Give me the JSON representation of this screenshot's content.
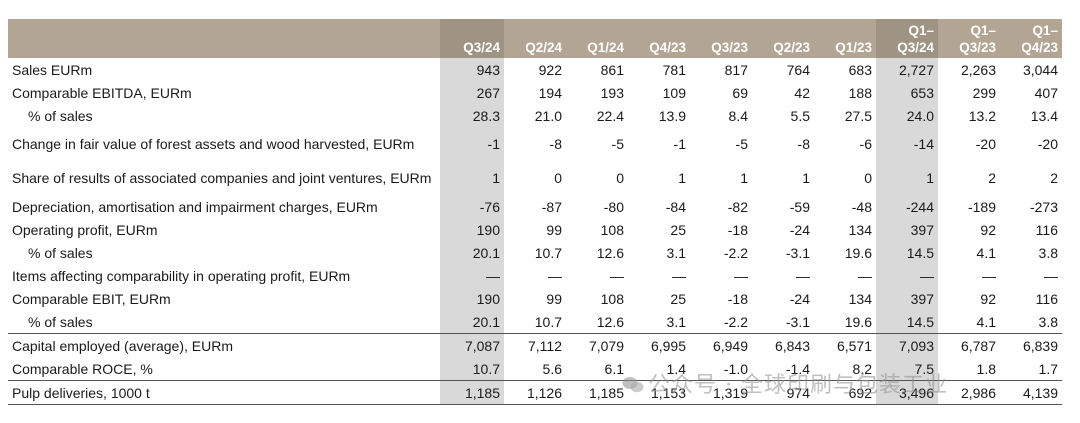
{
  "columns": [
    {
      "label": "Q3/24",
      "hl": true
    },
    {
      "label": "Q2/24",
      "hl": false
    },
    {
      "label": "Q1/24",
      "hl": false
    },
    {
      "label": "Q4/23",
      "hl": false
    },
    {
      "label": "Q3/23",
      "hl": false
    },
    {
      "label": "Q2/23",
      "hl": false
    },
    {
      "label": "Q1/23",
      "hl": false
    },
    {
      "label": "Q1–\nQ3/24",
      "hl": true
    },
    {
      "label": "Q1–\nQ3/23",
      "hl": false
    },
    {
      "label": "Q1–\nQ4/23",
      "hl": false
    }
  ],
  "rows": [
    {
      "label": "Sales EURm",
      "values": [
        "943",
        "922",
        "861",
        "781",
        "817",
        "764",
        "683",
        "2,727",
        "2,263",
        "3,044"
      ]
    },
    {
      "label": "Comparable EBITDA, EURm",
      "values": [
        "267",
        "194",
        "193",
        "109",
        "69",
        "42",
        "188",
        "653",
        "299",
        "407"
      ]
    },
    {
      "label": "% of sales",
      "indent": true,
      "values": [
        "28.3",
        "21.0",
        "22.4",
        "13.9",
        "8.4",
        "5.5",
        "27.5",
        "24.0",
        "13.2",
        "13.4"
      ]
    },
    {
      "label": "Change in fair value of forest assets and wood harvested, EURm",
      "tall": true,
      "values": [
        "-1",
        "-8",
        "-5",
        "-1",
        "-5",
        "-8",
        "-6",
        "-14",
        "-20",
        "-20"
      ]
    },
    {
      "label": "Share of results of associated companies and joint ventures, EURm",
      "tall": true,
      "values": [
        "1",
        "0",
        "0",
        "1",
        "1",
        "1",
        "0",
        "1",
        "2",
        "2"
      ]
    },
    {
      "label": "Depreciation, amortisation and impairment charges, EURm",
      "values": [
        "-76",
        "-87",
        "-80",
        "-84",
        "-82",
        "-59",
        "-48",
        "-244",
        "-189",
        "-273"
      ]
    },
    {
      "label": "Operating profit, EURm",
      "values": [
        "190",
        "99",
        "108",
        "25",
        "-18",
        "-24",
        "134",
        "397",
        "92",
        "116"
      ]
    },
    {
      "label": "% of sales",
      "indent": true,
      "values": [
        "20.1",
        "10.7",
        "12.6",
        "3.1",
        "-2.2",
        "-3.1",
        "19.6",
        "14.5",
        "4.1",
        "3.8"
      ]
    },
    {
      "label": "Items affecting comparability in operating profit, EURm",
      "values": [
        "—",
        "—",
        "—",
        "—",
        "—",
        "—",
        "—",
        "—",
        "—",
        "—"
      ]
    },
    {
      "label": "Comparable EBIT, EURm",
      "values": [
        "190",
        "99",
        "108",
        "25",
        "-18",
        "-24",
        "134",
        "397",
        "92",
        "116"
      ]
    },
    {
      "label": "% of sales",
      "indent": true,
      "values": [
        "20.1",
        "10.7",
        "12.6",
        "3.1",
        "-2.2",
        "-3.1",
        "19.6",
        "14.5",
        "4.1",
        "3.8"
      ]
    },
    {
      "label": "Capital employed (average), EURm",
      "sep": true,
      "values": [
        "7,087",
        "7,112",
        "7,079",
        "6,995",
        "6,949",
        "6,843",
        "6,571",
        "7,093",
        "6,787",
        "6,839"
      ]
    },
    {
      "label": "Comparable ROCE, %",
      "values": [
        "10.7",
        "5.6",
        "6.1",
        "1.4",
        "-1.0",
        "-1.4",
        "8.2",
        "7.5",
        "1.8",
        "1.7"
      ]
    },
    {
      "label": "Pulp deliveries, 1000 t",
      "sep": true,
      "last": true,
      "values": [
        "1,185",
        "1,126",
        "1,185",
        "1,153",
        "1,319",
        "974",
        "692",
        "3,496",
        "2,986",
        "4,139"
      ]
    }
  ],
  "watermark": "公众号 · 全球印刷与包装工业"
}
